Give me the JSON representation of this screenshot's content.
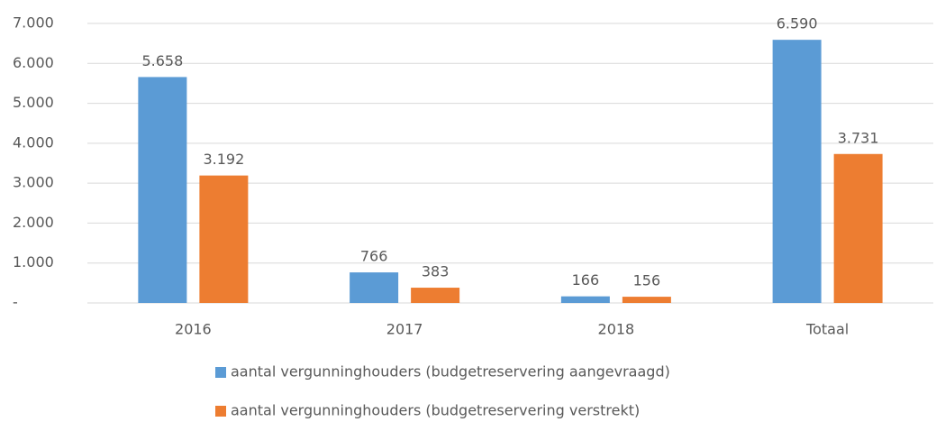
{
  "chart_data": {
    "type": "bar",
    "categories": [
      "2016",
      "2017",
      "2018",
      "Totaal"
    ],
    "series": [
      {
        "name": "aantal vergunninghouders (budgetreservering aangevraagd)",
        "color": "#5b9bd5",
        "values": [
          5658,
          766,
          166,
          6590
        ],
        "value_labels": [
          "5.658",
          "766",
          "166",
          "6.590"
        ]
      },
      {
        "name": "aantal vergunninghouders (budgetreservering verstrekt)",
        "color": "#ed7d31",
        "values": [
          3192,
          383,
          156,
          3731
        ],
        "value_labels": [
          "3.192",
          "383",
          "156",
          "3.731"
        ]
      }
    ],
    "ylim": [
      0,
      7000
    ],
    "yticks": [
      {
        "value": 0,
        "label": "-"
      },
      {
        "value": 1000,
        "label": "1.000"
      },
      {
        "value": 2000,
        "label": "2.000"
      },
      {
        "value": 3000,
        "label": "3.000"
      },
      {
        "value": 4000,
        "label": "4.000"
      },
      {
        "value": 5000,
        "label": "5.000"
      },
      {
        "value": 6000,
        "label": "6.000"
      },
      {
        "value": 7000,
        "label": "7.000"
      }
    ],
    "grid": true,
    "legend": "bottom"
  }
}
